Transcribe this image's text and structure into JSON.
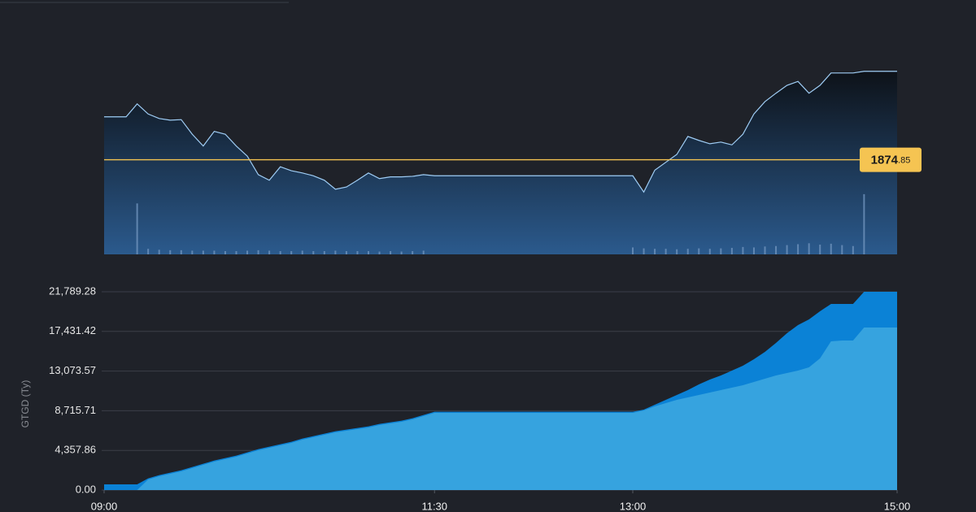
{
  "chart_data": [
    {
      "type": "line",
      "x": [
        "09:00",
        "09:05",
        "09:10",
        "09:15",
        "09:20",
        "09:25",
        "09:30",
        "09:35",
        "09:40",
        "09:45",
        "09:50",
        "09:55",
        "10:00",
        "10:05",
        "10:10",
        "10:15",
        "10:20",
        "10:25",
        "10:30",
        "10:35",
        "10:40",
        "10:45",
        "10:50",
        "10:55",
        "11:00",
        "11:05",
        "11:10",
        "11:15",
        "11:20",
        "11:25",
        "11:30",
        "13:00",
        "13:05",
        "13:10",
        "13:15",
        "13:20",
        "13:25",
        "13:30",
        "13:35",
        "13:40",
        "13:45",
        "13:50",
        "13:55",
        "14:00",
        "14:05",
        "14:10",
        "14:15",
        "14:20",
        "14:25",
        "14:30",
        "14:35",
        "14:40",
        "14:45",
        "14:50",
        "14:55",
        "15:00"
      ],
      "xlim": [
        "09:00",
        "15:00"
      ],
      "ylim": [
        1858,
        1891
      ],
      "y2lim": [
        0,
        40
      ],
      "series": [
        {
          "color": "#9fcdf5",
          "values": [
            1882.5,
            1882.5,
            1882.5,
            1884.8,
            1883.0,
            1882.2,
            1881.9,
            1882.0,
            1879.4,
            1877.3,
            1879.9,
            1879.4,
            1877.3,
            1875.5,
            1872.2,
            1871.2,
            1873.6,
            1872.9,
            1872.5,
            1872.0,
            1871.2,
            1869.6,
            1870.0,
            1871.2,
            1872.5,
            1871.5,
            1871.8,
            1871.8,
            1871.9,
            1872.2,
            1872.0,
            1872.0,
            1869.1,
            1873.0,
            1874.4,
            1875.8,
            1879.0,
            1878.3,
            1877.7,
            1878.0,
            1877.5,
            1879.4,
            1883.0,
            1885.2,
            1886.7,
            1888.1,
            1888.8,
            1886.7,
            1888.1,
            1890.3,
            1890.3,
            1890.3,
            1890.6,
            1890.6,
            1890.6,
            1890.6
          ]
        },
        {
          "type": "bar",
          "axis": "y2",
          "color": "#6f93bd",
          "values": [
            0,
            0,
            0,
            11,
            1.2,
            1.0,
            0.9,
            0.9,
            0.8,
            0.8,
            0.8,
            0.7,
            0.7,
            0.8,
            0.9,
            0.8,
            0.7,
            0.7,
            0.8,
            0.7,
            0.7,
            0.8,
            0.7,
            0.7,
            0.7,
            0.6,
            0.7,
            0.6,
            0.7,
            0.8,
            0,
            1.5,
            1.3,
            1.2,
            1.2,
            1.1,
            1.2,
            1.3,
            1.2,
            1.3,
            1.4,
            1.6,
            1.5,
            1.7,
            1.8,
            2.0,
            2.2,
            2.4,
            2.1,
            2.3,
            2.0,
            1.8,
            13,
            0,
            0,
            0
          ]
        }
      ],
      "reference_line": {
        "value": 1874.85,
        "color": "#f5c452"
      }
    },
    {
      "type": "area",
      "x": [
        "09:00",
        "09:05",
        "09:10",
        "09:15",
        "09:20",
        "09:25",
        "09:30",
        "09:35",
        "09:40",
        "09:45",
        "09:50",
        "09:55",
        "10:00",
        "10:05",
        "10:10",
        "10:15",
        "10:20",
        "10:25",
        "10:30",
        "10:35",
        "10:40",
        "10:45",
        "10:50",
        "10:55",
        "11:00",
        "11:05",
        "11:10",
        "11:15",
        "11:20",
        "11:25",
        "11:30",
        "13:00",
        "13:05",
        "13:10",
        "13:15",
        "13:20",
        "13:25",
        "13:30",
        "13:35",
        "13:40",
        "13:45",
        "13:50",
        "13:55",
        "14:00",
        "14:05",
        "14:10",
        "14:15",
        "14:20",
        "14:25",
        "14:30",
        "14:35",
        "14:40",
        "14:45",
        "14:50",
        "14:55",
        "15:00"
      ],
      "xlim": [
        "09:00",
        "15:00"
      ],
      "xticks": [
        "09:00",
        "11:30",
        "13:00",
        "15:00"
      ],
      "ylim": [
        0,
        21789.28
      ],
      "yticks": [
        {
          "value": 0,
          "label": "0.00"
        },
        {
          "value": 4357.86,
          "label": "4,357.86"
        },
        {
          "value": 8715.71,
          "label": "8,715.71"
        },
        {
          "value": 13073.57,
          "label": "13,073.57"
        },
        {
          "value": 17431.42,
          "label": "17,431.42"
        },
        {
          "value": 21789.28,
          "label": "21,789.28"
        }
      ],
      "ylabel": "GTGD (Ty)",
      "grid": true,
      "series": [
        {
          "color": "#0b82d6",
          "values": [
            625,
            625,
            625,
            625,
            1281,
            1638,
            1906,
            2174,
            2531,
            2888,
            3246,
            3513,
            3781,
            4139,
            4496,
            4764,
            5032,
            5299,
            5657,
            5925,
            6192,
            6460,
            6639,
            6818,
            6996,
            7264,
            7443,
            7621,
            7889,
            8246,
            8604,
            8604,
            8840,
            9377,
            9912,
            10448,
            10984,
            11609,
            12145,
            12591,
            13127,
            13663,
            14377,
            15181,
            16163,
            17235,
            18128,
            18753,
            19646,
            20450,
            20450,
            20450,
            21789,
            21789,
            21789,
            21789
          ]
        },
        {
          "color": "#36a3df",
          "values": [
            0,
            0,
            0,
            0,
            1161,
            1518,
            1786,
            2054,
            2411,
            2768,
            3126,
            3393,
            3661,
            4019,
            4376,
            4644,
            4912,
            5179,
            5537,
            5805,
            6072,
            6340,
            6519,
            6698,
            6876,
            7144,
            7323,
            7501,
            7769,
            8126,
            8484,
            8484,
            8751,
            9198,
            9555,
            9912,
            10180,
            10448,
            10716,
            10984,
            11252,
            11520,
            11877,
            12234,
            12591,
            12859,
            13127,
            13484,
            14467,
            16342,
            16431,
            16431,
            17860,
            17860,
            17860,
            17860
          ]
        }
      ]
    }
  ]
}
